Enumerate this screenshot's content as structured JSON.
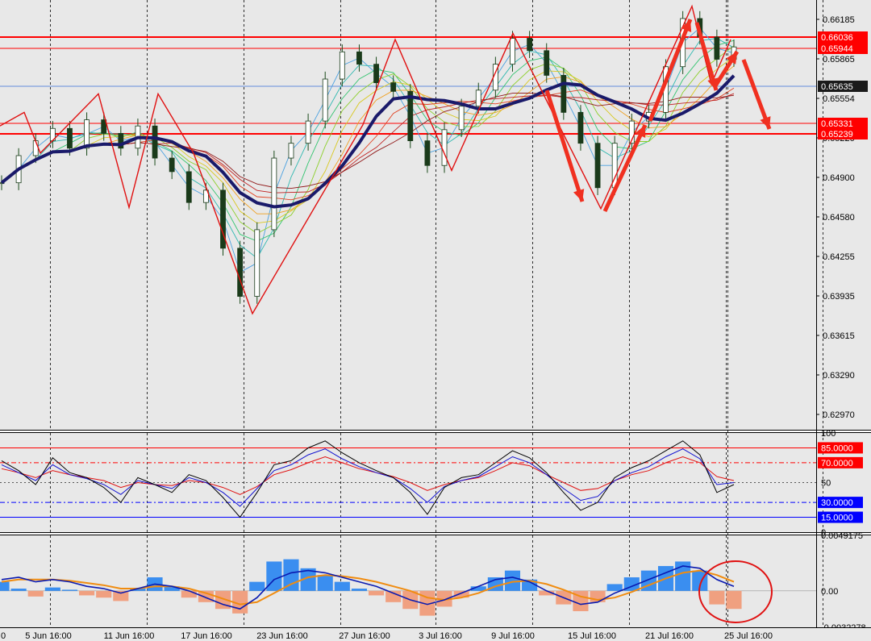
{
  "chart_data": [
    {
      "type": "candlestick",
      "price_axis_labels": [
        "0.66185",
        "0.65865",
        "0.65554",
        "0.65220",
        "0.64900",
        "0.64580",
        "0.64255",
        "0.63935",
        "0.63615",
        "0.63290",
        "0.62970"
      ],
      "ylim": [
        0.6278,
        0.6626
      ],
      "time_labels": [
        "0",
        "5 Jun 16:00",
        "11 Jun 16:00",
        "17 Jun 16:00",
        "23 Jun 16:00",
        "27 Jun 16:00",
        "3 Jul 16:00",
        "9 Jul 16:00",
        "15 Jul 16:00",
        "21 Jul 16:00",
        "25 Jul 16:00"
      ],
      "horizontal_levels": [
        {
          "value": "0.66036",
          "color": "#ff0000"
        },
        {
          "value": "0.65944",
          "color": "#ff0000"
        },
        {
          "value": "0.65635",
          "color": "#1a1a1a"
        },
        {
          "value": "0.65331",
          "color": "#ff0000"
        },
        {
          "value": "0.65239",
          "color": "#ff0000"
        }
      ],
      "zigzag": [
        0.6524,
        0.6535,
        0.6502,
        0.655,
        0.6458,
        0.655,
        0.6502,
        0.6372,
        0.6525,
        0.6594,
        0.6488,
        0.6599,
        0.6457,
        0.6621,
        0.6558,
        0.6594
      ],
      "close_path": [
        0.6478,
        0.65,
        0.6512,
        0.6522,
        0.6506,
        0.6529,
        0.6518,
        0.6506,
        0.6524,
        0.6498,
        0.6487,
        0.6462,
        0.6472,
        0.6425,
        0.6386,
        0.644,
        0.6498,
        0.651,
        0.6528,
        0.6562,
        0.6584,
        0.6574,
        0.6559,
        0.6552,
        0.6512,
        0.6492,
        0.6521,
        0.654,
        0.6553,
        0.6574,
        0.6595,
        0.6585,
        0.6565,
        0.6535,
        0.651,
        0.6474,
        0.651,
        0.6528,
        0.6535,
        0.6572,
        0.6611,
        0.6596,
        0.6578,
        0.6588
      ]
    },
    {
      "type": "line",
      "name": "oscillator",
      "axis_labels": [
        "100",
        "50",
        "0"
      ],
      "levels": [
        {
          "value": "85.0000",
          "color": "#ff0000"
        },
        {
          "value": "70.0000",
          "color": "#ff0000"
        },
        {
          "value": "30.0000",
          "color": "#0000ff"
        },
        {
          "value": "15.0000",
          "color": "#0000ff"
        }
      ],
      "ylim": [
        0,
        100
      ],
      "black_line": [
        72,
        62,
        48,
        75,
        60,
        55,
        45,
        30,
        55,
        48,
        40,
        58,
        52,
        35,
        15,
        40,
        68,
        72,
        85,
        92,
        80,
        70,
        62,
        55,
        40,
        18,
        45,
        55,
        58,
        70,
        82,
        75,
        60,
        40,
        22,
        30,
        55,
        65,
        72,
        82,
        92,
        78,
        40,
        48
      ],
      "blue_line": [
        68,
        60,
        52,
        68,
        58,
        54,
        48,
        38,
        52,
        48,
        44,
        55,
        50,
        40,
        26,
        44,
        62,
        68,
        78,
        84,
        74,
        66,
        60,
        55,
        44,
        30,
        46,
        52,
        56,
        66,
        76,
        70,
        58,
        44,
        32,
        36,
        52,
        60,
        66,
        76,
        84,
        74,
        48,
        50
      ],
      "red_line": [
        64,
        60,
        55,
        62,
        58,
        55,
        52,
        45,
        50,
        48,
        47,
        52,
        50,
        45,
        38,
        46,
        58,
        63,
        70,
        76,
        70,
        64,
        60,
        56,
        50,
        42,
        48,
        52,
        55,
        62,
        70,
        67,
        58,
        50,
        42,
        44,
        52,
        58,
        62,
        70,
        76,
        70,
        56,
        52
      ]
    },
    {
      "type": "bar",
      "name": "histogram",
      "axis_labels": [
        "0.0049175",
        "0.00",
        "-0.0032278"
      ],
      "ylim": [
        -0.0032278,
        0.0049175
      ],
      "histogram": [
        0.0008,
        0.0002,
        -0.0005,
        0.0003,
        0.0001,
        -0.0004,
        -0.0006,
        -0.0009,
        0.0002,
        0.0012,
        0.0004,
        -0.0006,
        -0.001,
        -0.0016,
        -0.002,
        0.0008,
        0.0026,
        0.0028,
        0.002,
        0.0014,
        0.0008,
        0.0002,
        -0.0004,
        -0.001,
        -0.0016,
        -0.0022,
        -0.0014,
        -0.0006,
        0.0004,
        0.0012,
        0.0018,
        0.001,
        -0.0004,
        -0.0012,
        -0.0018,
        -0.001,
        0.0006,
        0.0012,
        0.0018,
        0.0022,
        0.0026,
        0.0018,
        -0.0012,
        -0.0016
      ],
      "fast_line": [
        0.001,
        0.0012,
        0.0008,
        0.001,
        0.0008,
        0.0004,
        0.0002,
        -0.0002,
        0.0002,
        0.0006,
        0.0004,
        0.0,
        -0.0006,
        -0.0012,
        -0.0016,
        -0.0006,
        0.001,
        0.0016,
        0.0018,
        0.0016,
        0.0012,
        0.0008,
        0.0004,
        -0.0002,
        -0.0008,
        -0.0012,
        -0.0008,
        -0.0002,
        0.0004,
        0.001,
        0.0012,
        0.0008,
        0.0,
        -0.0006,
        -0.0012,
        -0.001,
        -0.0002,
        0.0004,
        0.001,
        0.0016,
        0.0022,
        0.002,
        0.001,
        0.0004
      ],
      "slow_line": [
        0.0008,
        0.001,
        0.001,
        0.001,
        0.0009,
        0.0007,
        0.0005,
        0.0002,
        0.0002,
        0.0004,
        0.0004,
        0.0002,
        -0.0002,
        -0.0007,
        -0.0012,
        -0.001,
        -0.0002,
        0.0006,
        0.0012,
        0.0014,
        0.0013,
        0.0011,
        0.0008,
        0.0004,
        0.0,
        -0.0006,
        -0.0008,
        -0.0006,
        -0.0002,
        0.0004,
        0.0008,
        0.0009,
        0.0006,
        0.0001,
        -0.0005,
        -0.0008,
        -0.0006,
        -0.0001,
        0.0005,
        0.0011,
        0.0016,
        0.0018,
        0.0014,
        0.0008
      ]
    }
  ]
}
